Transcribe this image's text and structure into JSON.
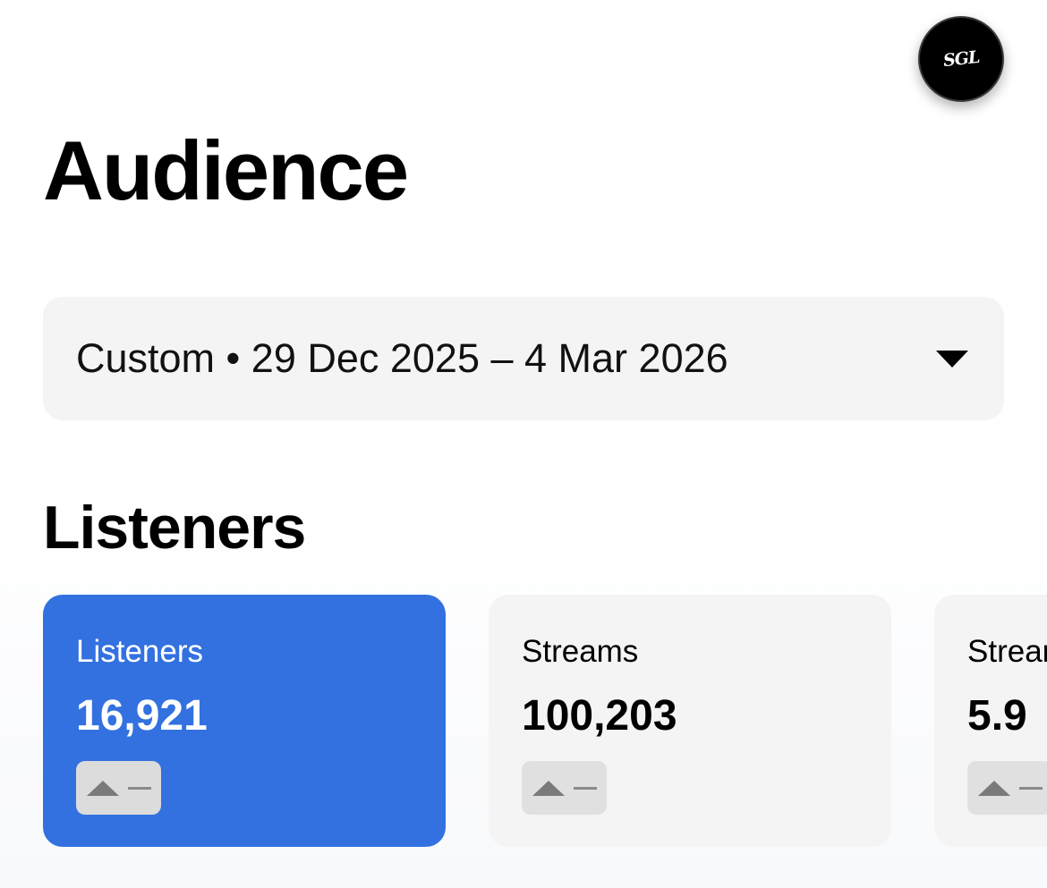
{
  "avatar": {
    "initials": "SGL"
  },
  "page": {
    "title": "Audience"
  },
  "date_range": {
    "label": "Custom • 29 Dec 2025 – 4 Mar 2026"
  },
  "section": {
    "title": "Listeners"
  },
  "cards": [
    {
      "label": "Listeners",
      "value": "16,921",
      "active": true
    },
    {
      "label": "Streams",
      "value": "100,203",
      "active": false
    },
    {
      "label": "Streams per listener",
      "value": "5.9",
      "active": false
    }
  ],
  "icons": {
    "trend": "triangle-up-icon",
    "caret": "chevron-down-icon"
  },
  "colors": {
    "accent": "#3371e0",
    "card_bg": "#f4f4f4",
    "badge_bg": "#e0e0e0"
  }
}
